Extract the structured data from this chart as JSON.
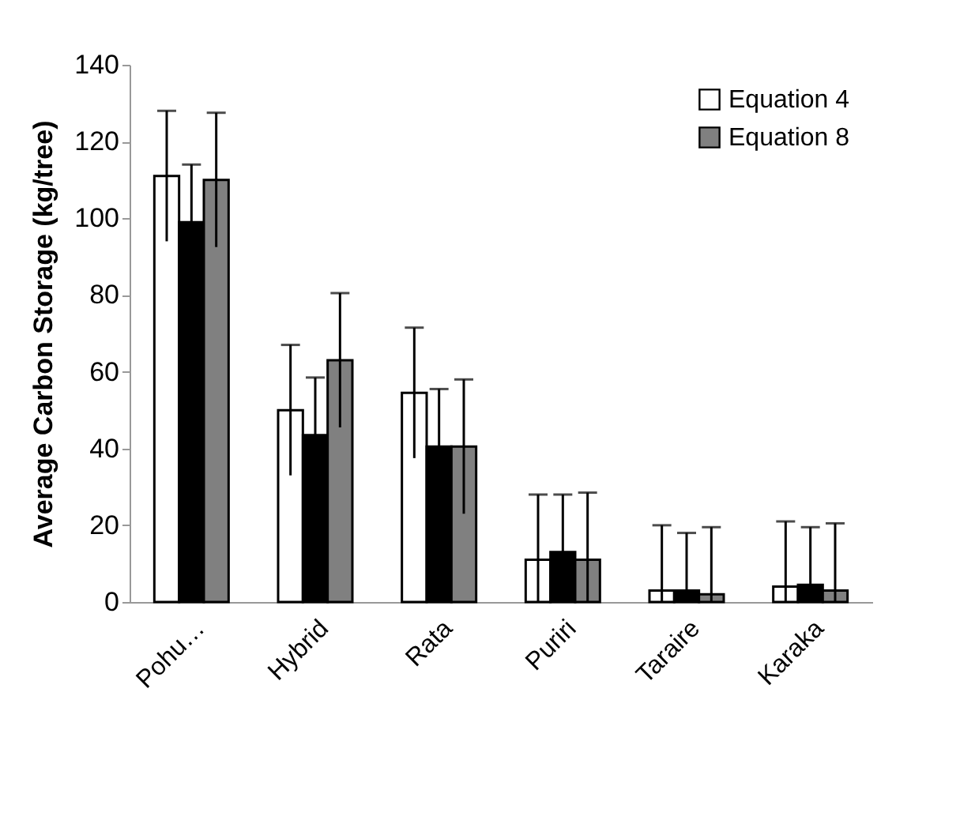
{
  "chart_data": {
    "type": "bar",
    "ylabel": "Average Carbon Storage (kg/tree)",
    "categories": [
      "Pohu…",
      "Hybrid",
      "Rata",
      "Puriri",
      "Taraire",
      "Karaka"
    ],
    "series": [
      {
        "name": "Equation 4",
        "color": "#ffffff",
        "values": [
          111,
          50,
          54.5,
          11,
          3,
          4
        ],
        "errors": [
          17,
          17,
          17,
          17,
          17,
          17
        ]
      },
      {
        "color": "#000000",
        "values": [
          99,
          43.5,
          40.5,
          13,
          3,
          4.5
        ],
        "errors": [
          15,
          15,
          15,
          15,
          15,
          15
        ]
      },
      {
        "name": "Equation 8",
        "color": "#808080",
        "values": [
          110,
          63,
          40.5,
          11,
          2,
          3
        ],
        "errors": [
          17.5,
          17.5,
          17.5,
          17.5,
          17.5,
          17.5
        ]
      }
    ],
    "ylim": [
      0,
      140
    ],
    "yticks": [
      0,
      20,
      40,
      60,
      80,
      100,
      120,
      140
    ],
    "grid": false,
    "legend": "top right"
  }
}
